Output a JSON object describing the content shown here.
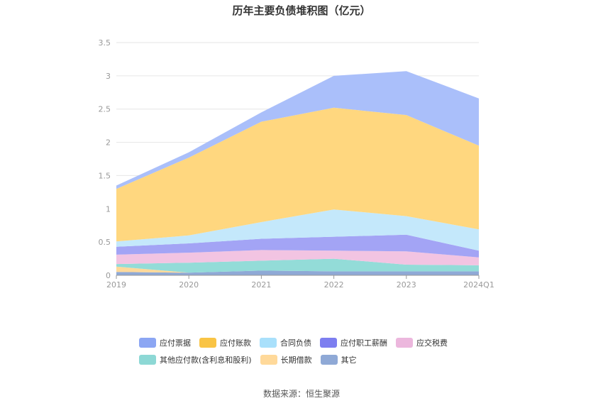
{
  "chart_data": {
    "type": "area",
    "stacked": true,
    "title": "历年主要负债堆积图（亿元）",
    "categories": [
      "2019",
      "2020",
      "2021",
      "2022",
      "2023",
      "2024Q1"
    ],
    "ylim": [
      0,
      3.5
    ],
    "yticks": [
      0,
      0.5,
      1,
      1.5,
      2,
      2.5,
      3,
      3.5
    ],
    "ytick_labels": [
      "0",
      "0.5",
      "1",
      "1.5",
      "2",
      "2.5",
      "3",
      "3.5"
    ],
    "grid": true,
    "legend_position": "bottom",
    "series": [
      {
        "name": "其它",
        "color": "#8fa9d6",
        "values": [
          0.05,
          0.04,
          0.07,
          0.06,
          0.06,
          0.06
        ]
      },
      {
        "name": "长期借款",
        "color": "#ffd99a",
        "values": [
          0.08,
          0.0,
          0.0,
          0.0,
          0.0,
          0.0
        ]
      },
      {
        "name": "其他应付款(含利息和股利)",
        "color": "#93dcd8",
        "values": [
          0.04,
          0.15,
          0.15,
          0.19,
          0.1,
          0.09
        ]
      },
      {
        "name": "应交税费",
        "color": "#f2c4e2",
        "values": [
          0.14,
          0.15,
          0.16,
          0.12,
          0.2,
          0.12
        ]
      },
      {
        "name": "应付职工薪酬",
        "color": "#a3a4f5",
        "values": [
          0.12,
          0.14,
          0.17,
          0.21,
          0.25,
          0.1
        ]
      },
      {
        "name": "合同负债",
        "color": "#c4e8fb",
        "values": [
          0.08,
          0.12,
          0.25,
          0.41,
          0.28,
          0.32
        ]
      },
      {
        "name": "应付账款",
        "color": "#ffd77f",
        "values": [
          0.79,
          1.17,
          1.51,
          1.53,
          1.52,
          1.26
        ]
      },
      {
        "name": "应付票据",
        "color": "#aabffa",
        "values": [
          0.05,
          0.08,
          0.14,
          0.48,
          0.66,
          0.71
        ]
      }
    ],
    "legend": [
      {
        "name": "应付票据",
        "color": "#8ca6f3"
      },
      {
        "name": "应付账款",
        "color": "#f9c445"
      },
      {
        "name": "合同负债",
        "color": "#a9e0fb"
      },
      {
        "name": "应付职工薪酬",
        "color": "#7d7ef0"
      },
      {
        "name": "应交税费",
        "color": "#ecb7dd"
      },
      {
        "name": "其他应付款(含利息和股利)",
        "color": "#8dd8d5"
      },
      {
        "name": "长期借款",
        "color": "#ffd99a"
      },
      {
        "name": "其它",
        "color": "#8fa9d6"
      }
    ]
  },
  "source": "数据来源：恒生聚源"
}
